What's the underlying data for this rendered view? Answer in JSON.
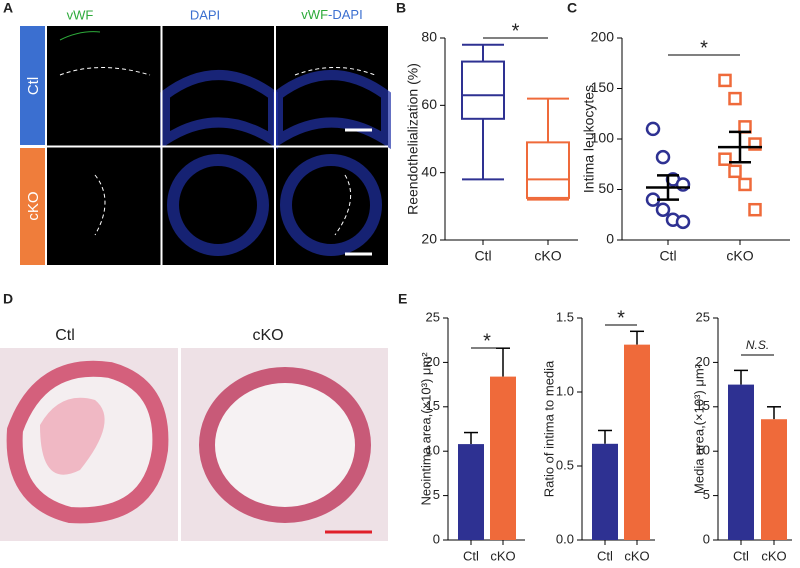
{
  "figure": {
    "panel_labels": [
      "A",
      "B",
      "C",
      "D",
      "E"
    ],
    "A": {
      "columns": [
        "vWF",
        "DAPI"
      ],
      "merge": [
        "vWF",
        "-DAPI"
      ],
      "rows": [
        "Ctl",
        "cKO"
      ]
    },
    "D": {
      "columns": [
        "Ctl",
        "cKO"
      ]
    }
  },
  "chart_data": [
    {
      "type": "box",
      "y_label": "Reendothelialization (%)",
      "categories": [
        "Ctl",
        "cKO"
      ],
      "colors": [
        "#2e3192",
        "#ef6a3a"
      ],
      "min": [
        38,
        32
      ],
      "q1": [
        56,
        32.5
      ],
      "median": [
        63,
        38
      ],
      "q3": [
        73,
        49
      ],
      "max": [
        78,
        62
      ],
      "ylim": [
        20,
        80
      ],
      "yticks": [
        20,
        40,
        60,
        80
      ],
      "annotation": "*"
    },
    {
      "type": "dot",
      "y_label": "Intima leukocytes",
      "categories": [
        "Ctl",
        "cKO"
      ],
      "colors": [
        "#2e3192",
        "#ef6a3a"
      ],
      "markers": [
        "circle",
        "square"
      ],
      "values": [
        [
          110,
          82,
          60,
          55,
          40,
          30,
          20,
          18
        ],
        [
          158,
          140,
          112,
          95,
          80,
          68,
          55,
          30
        ]
      ],
      "mean": [
        52,
        92
      ],
      "sem": [
        12,
        15
      ],
      "ylim": [
        0,
        200
      ],
      "yticks": [
        0,
        50,
        100,
        150,
        200
      ],
      "annotation": "*"
    },
    {
      "type": "bar",
      "y_label": "Neointima area,(×10³) μm²",
      "categories": [
        "Ctl",
        "cKO"
      ],
      "colors": [
        "#2e3192",
        "#ef6a3a"
      ],
      "values": [
        10.8,
        18.4
      ],
      "errors": [
        1.3,
        3.2
      ],
      "ylim": [
        0,
        25
      ],
      "yticks": [
        0,
        5,
        10,
        15,
        20,
        25
      ],
      "annotation": "*"
    },
    {
      "type": "bar",
      "y_label": "Ratio of intima to media",
      "categories": [
        "Ctl",
        "cKO"
      ],
      "colors": [
        "#2e3192",
        "#ef6a3a"
      ],
      "values": [
        0.65,
        1.32
      ],
      "errors": [
        0.09,
        0.09
      ],
      "ylim": [
        0,
        1.5
      ],
      "yticks": [
        {
          "value": 0,
          "label": "0.0"
        },
        0.5,
        {
          "value": 1,
          "label": "1.0"
        },
        1.5
      ],
      "annotation": "*"
    },
    {
      "type": "bar",
      "y_label": "Media area,(×10³) μm²",
      "categories": [
        "Ctl",
        "cKO"
      ],
      "colors": [
        "#2e3192",
        "#ef6a3a"
      ],
      "values": [
        17.5,
        13.6
      ],
      "errors": [
        1.6,
        1.4
      ],
      "ylim": [
        0,
        25
      ],
      "yticks": [
        0,
        5,
        10,
        15,
        20,
        25
      ],
      "annotation": "N.S."
    }
  ]
}
